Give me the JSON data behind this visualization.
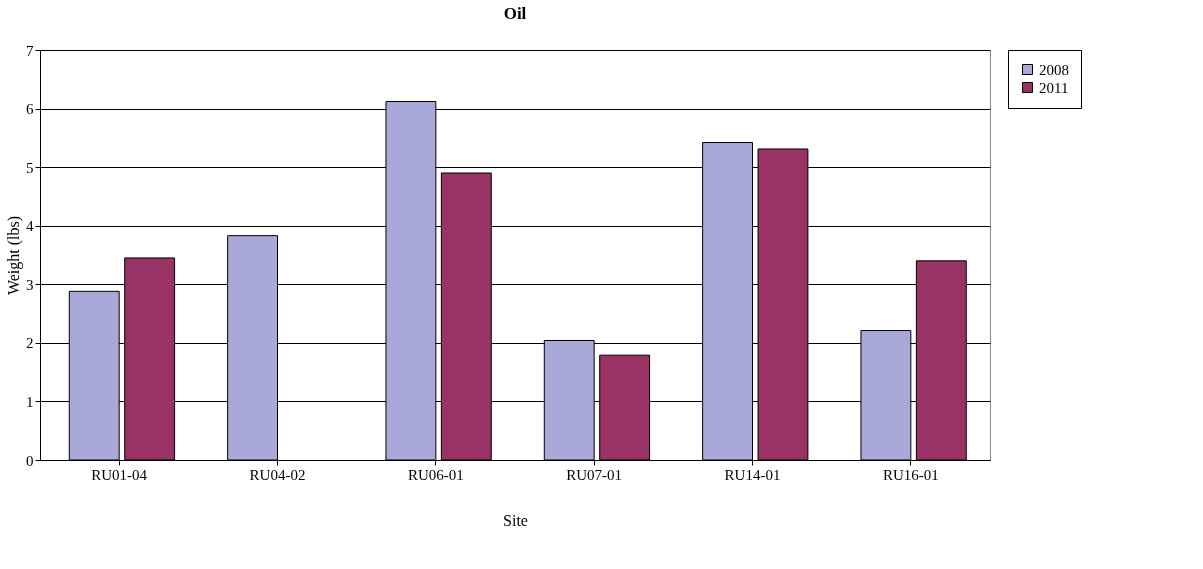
{
  "chart_data": {
    "type": "bar",
    "title": "Oil",
    "xlabel": "Site",
    "ylabel": "Weight (lbs)",
    "categories": [
      "RU01-04",
      "RU04-02",
      "RU06-01",
      "RU07-01",
      "RU14-01",
      "RU16-01"
    ],
    "series": [
      {
        "name": "2008",
        "color": "#a9a9d9",
        "values": [
          2.88,
          3.83,
          6.12,
          2.04,
          5.42,
          2.21
        ]
      },
      {
        "name": "2011",
        "color": "#993366",
        "values": [
          3.45,
          null,
          4.9,
          1.79,
          5.31,
          3.4
        ]
      }
    ],
    "ylim": [
      0,
      7
    ],
    "yticks": [
      0,
      1,
      2,
      3,
      4,
      5,
      6,
      7
    ],
    "grid": "y",
    "legend": "right"
  }
}
